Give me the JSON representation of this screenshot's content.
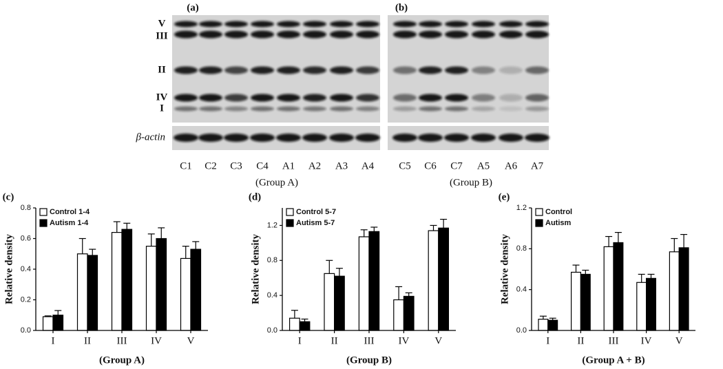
{
  "blots": {
    "panels": [
      {
        "label": "(a)",
        "lanes": [
          "C1",
          "C2",
          "C3",
          "C4",
          "A1",
          "A2",
          "A3",
          "A4"
        ],
        "group": "(Group A)"
      },
      {
        "label": "(b)",
        "lanes": [
          "C5",
          "C6",
          "C7",
          "A5",
          "A6",
          "A7"
        ],
        "group": "(Group B)"
      }
    ],
    "bands": [
      "V",
      "III",
      "II",
      "IV",
      "I"
    ],
    "actin": "β-actin"
  },
  "chart_data": [
    {
      "type": "bar",
      "title": "(c)",
      "xlabel": "(Group A)",
      "ylabel": "Relative density",
      "legend": "upper left",
      "categories": [
        "I",
        "II",
        "III",
        "IV",
        "V"
      ],
      "series": [
        {
          "name": "Control 1-4",
          "color": "#ffffff",
          "values": [
            0.09,
            0.5,
            0.64,
            0.55,
            0.47
          ],
          "errors": [
            0.005,
            0.1,
            0.07,
            0.08,
            0.08
          ]
        },
        {
          "name": "Autism 1-4",
          "color": "#000000",
          "values": [
            0.1,
            0.49,
            0.66,
            0.6,
            0.53
          ],
          "errors": [
            0.03,
            0.04,
            0.04,
            0.07,
            0.05
          ]
        }
      ],
      "ylim": [
        0,
        0.8
      ],
      "yticks": [
        {
          "value": 0,
          "label": "0.0"
        },
        0.2,
        0.4,
        0.6,
        0.8
      ]
    },
    {
      "type": "bar",
      "title": "(d)",
      "xlabel": "(Group B)",
      "ylabel": "Relative density",
      "legend": "upper left",
      "categories": [
        "I",
        "II",
        "III",
        "IV",
        "V"
      ],
      "series": [
        {
          "name": "Control 5-7",
          "color": "#ffffff",
          "values": [
            0.14,
            0.65,
            1.07,
            0.35,
            1.14
          ],
          "errors": [
            0.09,
            0.15,
            0.08,
            0.15,
            0.06
          ]
        },
        {
          "name": "Autism 5-7",
          "color": "#000000",
          "values": [
            0.1,
            0.62,
            1.13,
            0.39,
            1.17
          ],
          "errors": [
            0.03,
            0.09,
            0.05,
            0.04,
            0.1
          ]
        }
      ],
      "ylim": [
        0,
        1.4
      ],
      "yticks": [
        {
          "value": 0,
          "label": "0.0"
        },
        0.4,
        0.8,
        1.2
      ]
    },
    {
      "type": "bar",
      "title": "(e)",
      "xlabel": "(Group A + B)",
      "ylabel": "Relative density",
      "legend": "upper left",
      "categories": [
        "I",
        "II",
        "III",
        "IV",
        "V"
      ],
      "series": [
        {
          "name": "Control",
          "color": "#ffffff",
          "values": [
            0.11,
            0.57,
            0.82,
            0.47,
            0.77
          ],
          "errors": [
            0.03,
            0.07,
            0.1,
            0.08,
            0.13
          ]
        },
        {
          "name": "Autism",
          "color": "#000000",
          "values": [
            0.1,
            0.55,
            0.86,
            0.51,
            0.81
          ],
          "errors": [
            0.02,
            0.04,
            0.1,
            0.04,
            0.13
          ]
        }
      ],
      "ylim": [
        0,
        1.2
      ],
      "yticks": [
        {
          "value": 0,
          "label": "0.0"
        },
        0.4,
        0.8,
        1.2
      ]
    }
  ]
}
